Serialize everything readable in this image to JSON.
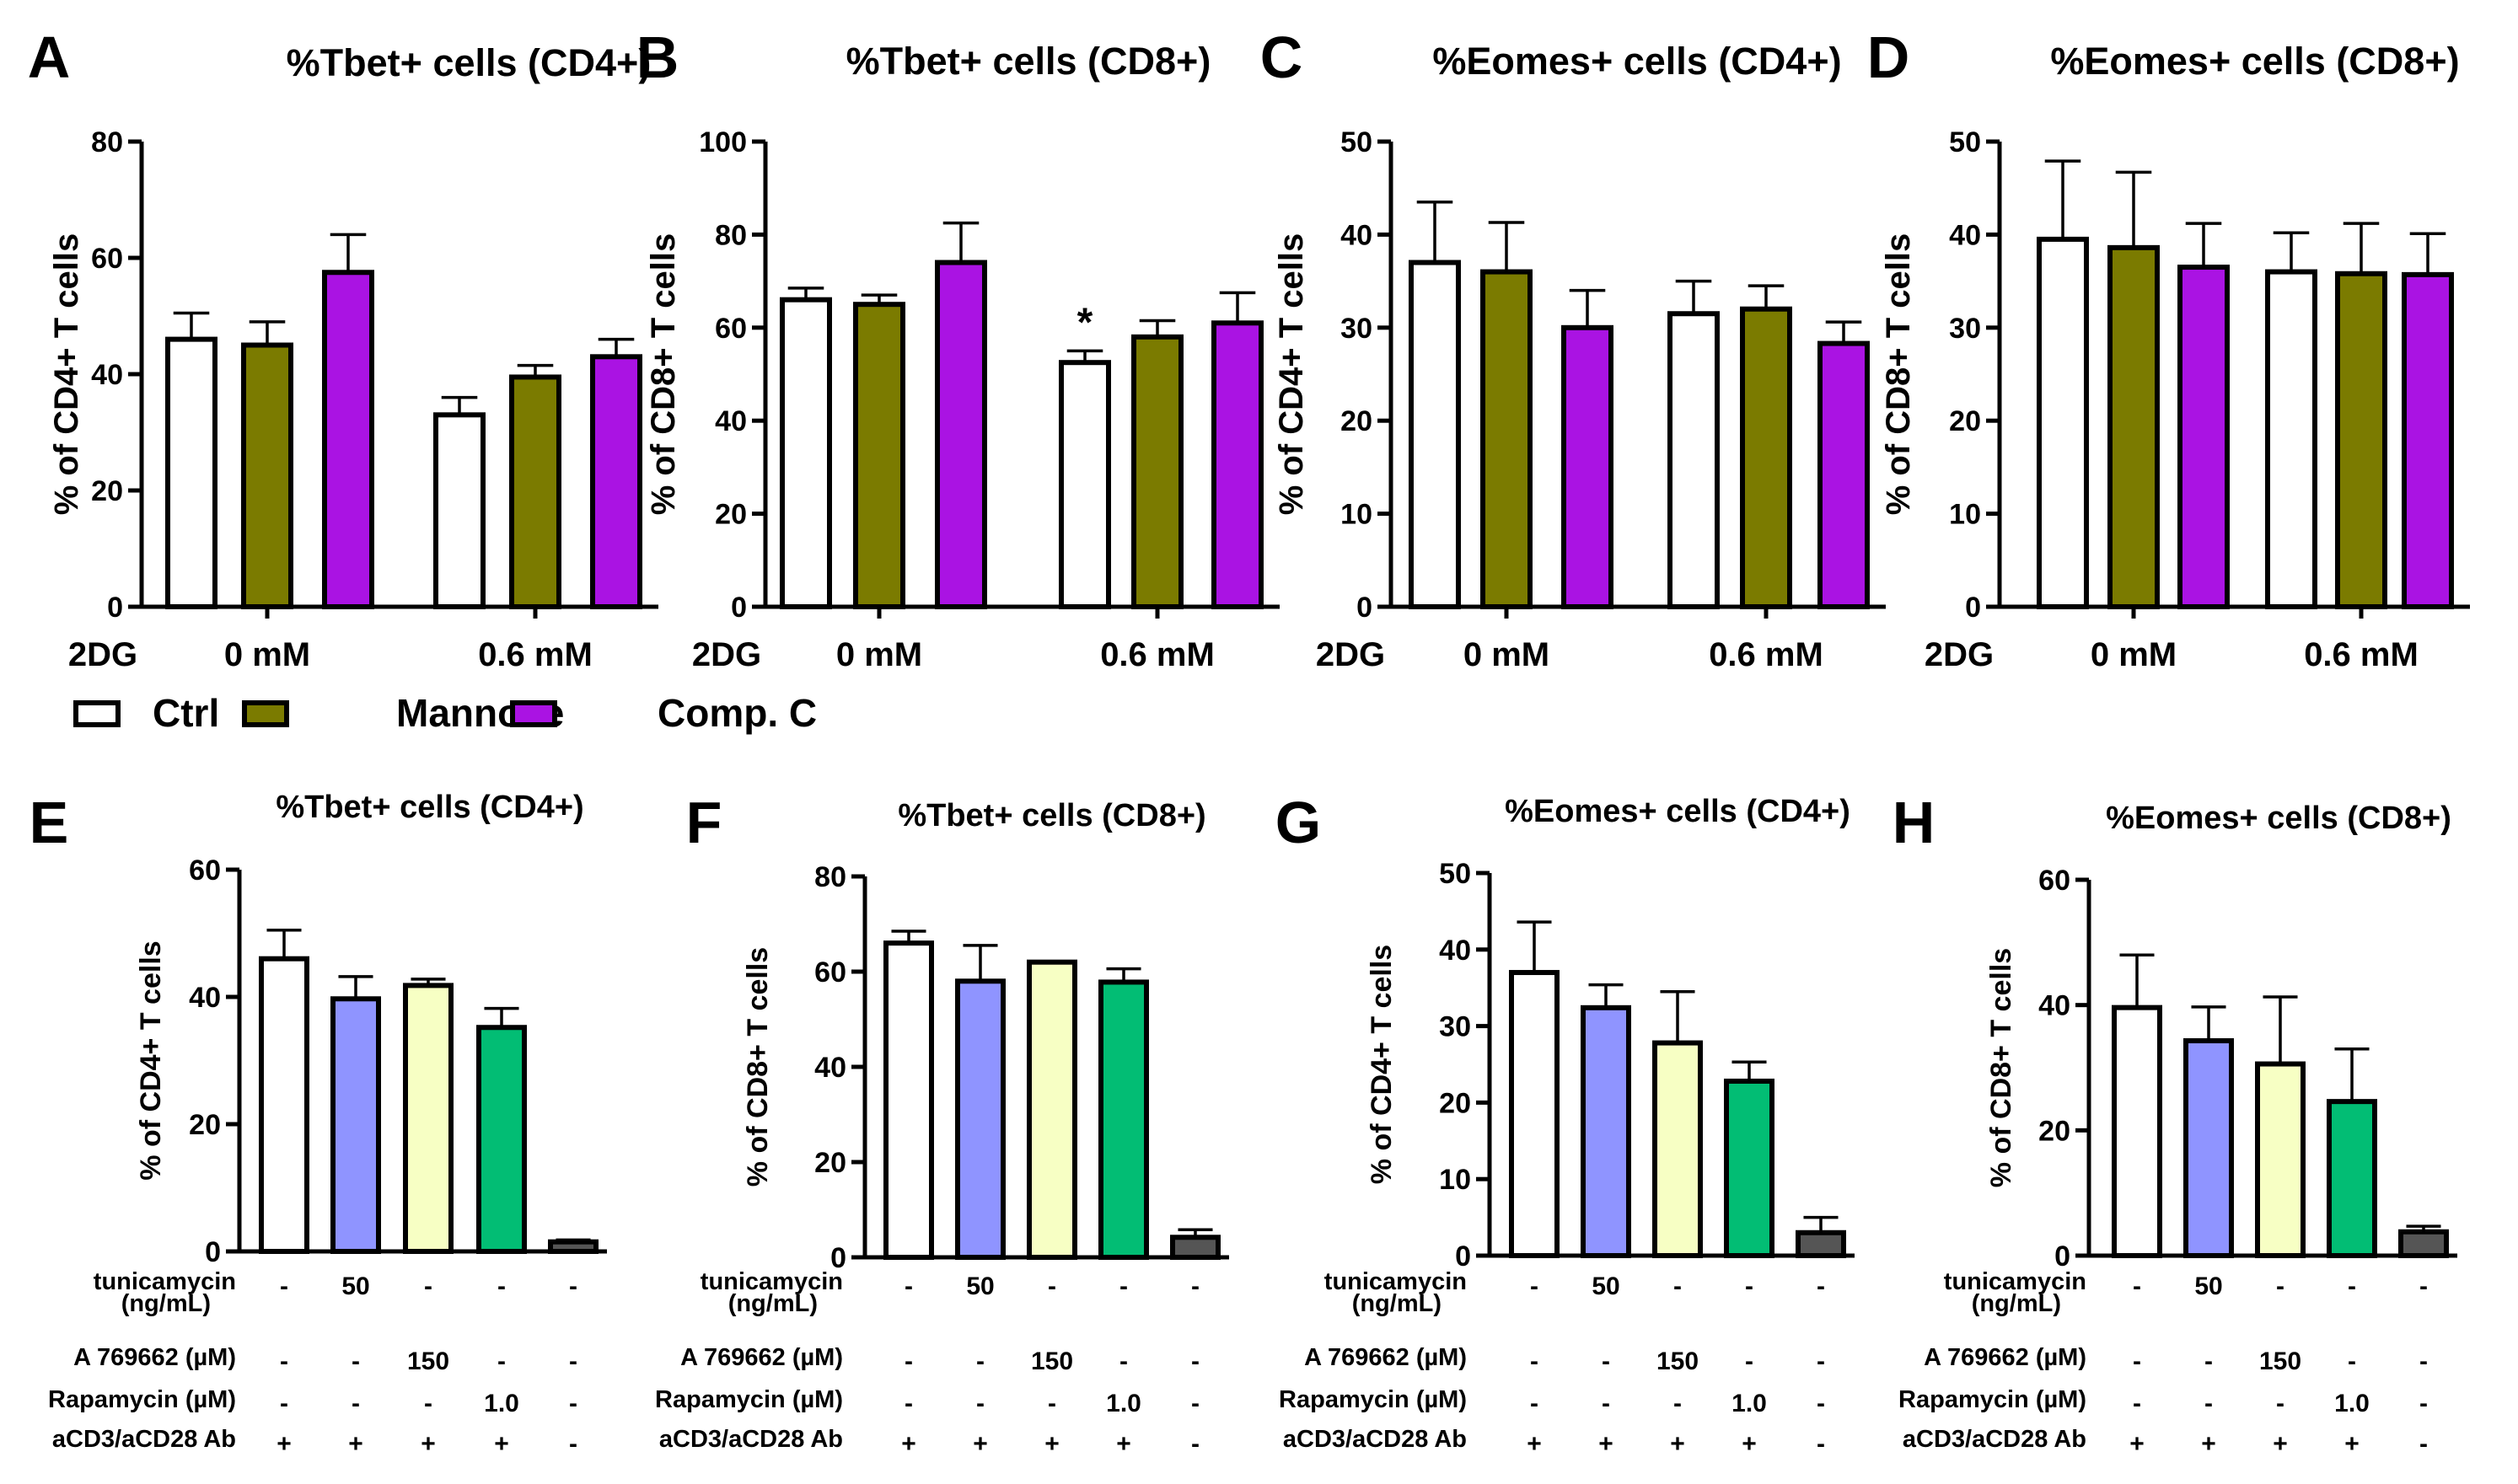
{
  "figure": {
    "legend": [
      {
        "label": "Ctrl",
        "color": "#ffffff"
      },
      {
        "label": "Mannose",
        "color": "#7b7b00"
      },
      {
        "label": "Comp. C",
        "color": "#aa13e3"
      }
    ],
    "row2_row_labels": [
      "tunicamycin",
      "(ng/mL)",
      "A 769662 (µM)",
      "Rapamycin (µM)",
      "aCD3/aCD28 Ab"
    ],
    "row2_treatment_values": [
      [
        "-",
        "50",
        "-",
        "-",
        "-"
      ],
      [
        "-",
        "-",
        "150",
        "-",
        "-"
      ],
      [
        "-",
        "-",
        "-",
        "1.0",
        "-"
      ],
      [
        "+",
        "+",
        "+",
        "+",
        "-"
      ]
    ],
    "row2_colors": [
      "#ffffff",
      "#8f94ff",
      "#f7ffc4",
      "#02bd74",
      "#555555"
    ]
  },
  "chart_data": [
    {
      "panel": "A",
      "type": "bar",
      "title": "%Tbet+ cells (CD4+)",
      "ylabel": "% of CD4+ T cells",
      "ylim": [
        0,
        80
      ],
      "yticks": [
        0,
        20,
        40,
        60,
        80
      ],
      "xprefix": "2DG",
      "categories": [
        "0 mM",
        "0.6 mM"
      ],
      "series": [
        {
          "name": "Ctrl",
          "values": [
            46,
            33
          ],
          "errors": [
            4.5,
            3
          ]
        },
        {
          "name": "Mannose",
          "values": [
            45,
            39.5
          ],
          "errors": [
            4,
            2
          ]
        },
        {
          "name": "Comp. C",
          "values": [
            57.5,
            43
          ],
          "errors": [
            6.5,
            3
          ]
        }
      ]
    },
    {
      "panel": "B",
      "type": "bar",
      "title": "%Tbet+ cells (CD8+)",
      "ylabel": "% of CD8+ T cells",
      "ylim": [
        0,
        100
      ],
      "yticks": [
        0,
        20,
        40,
        60,
        80,
        100
      ],
      "xprefix": "2DG",
      "categories": [
        "0 mM",
        "0.6 mM"
      ],
      "series": [
        {
          "name": "Ctrl",
          "values": [
            66,
            52.5
          ],
          "errors": [
            2.5,
            2.5
          ]
        },
        {
          "name": "Mannose",
          "values": [
            65,
            58
          ],
          "errors": [
            2,
            3.5
          ]
        },
        {
          "name": "Comp. C",
          "values": [
            74,
            61
          ],
          "errors": [
            8.5,
            6.5
          ]
        }
      ],
      "annotations": [
        {
          "text": "*",
          "category": "0.6 mM",
          "series": "Ctrl"
        }
      ]
    },
    {
      "panel": "C",
      "type": "bar",
      "title": "%Eomes+ cells (CD4+)",
      "ylabel": "% of CD4+ T cells",
      "ylim": [
        0,
        50
      ],
      "yticks": [
        0,
        10,
        20,
        30,
        40,
        50
      ],
      "xprefix": "2DG",
      "categories": [
        "0 mM",
        "0.6 mM"
      ],
      "series": [
        {
          "name": "Ctrl",
          "values": [
            37,
            31.5
          ],
          "errors": [
            6.5,
            3.5
          ]
        },
        {
          "name": "Mannose",
          "values": [
            36,
            32
          ],
          "errors": [
            5.3,
            2.5
          ]
        },
        {
          "name": "Comp. C",
          "values": [
            30,
            28.3
          ],
          "errors": [
            4,
            2.3
          ]
        }
      ]
    },
    {
      "panel": "D",
      "type": "bar",
      "title": "%Eomes+ cells (CD8+)",
      "ylabel": "% of CD8+ T cells",
      "ylim": [
        0,
        50
      ],
      "yticks": [
        0,
        10,
        20,
        30,
        40,
        50
      ],
      "xprefix": "2DG",
      "categories": [
        "0 mM",
        "0.6 mM"
      ],
      "series": [
        {
          "name": "Ctrl",
          "values": [
            39.5,
            36
          ],
          "errors": [
            8.4,
            4.2
          ]
        },
        {
          "name": "Mannose",
          "values": [
            38.6,
            35.8
          ],
          "errors": [
            8.1,
            5.4
          ]
        },
        {
          "name": "Comp. C",
          "values": [
            36.5,
            35.7
          ],
          "errors": [
            4.7,
            4.4
          ]
        }
      ]
    },
    {
      "panel": "E",
      "type": "bar",
      "title": "%Tbet+ cells (CD4+)",
      "ylabel": "% of CD4+ T cells",
      "ylim": [
        0,
        60
      ],
      "yticks": [
        0,
        20,
        40,
        60
      ],
      "values": [
        46,
        39.7,
        41.8,
        35.2,
        1.5
      ],
      "errors": [
        4.5,
        3.5,
        1,
        3,
        0.3
      ]
    },
    {
      "panel": "F",
      "type": "bar",
      "title": "%Tbet+ cells (CD8+)",
      "ylabel": "% of CD8+ T cells",
      "ylim": [
        0,
        80
      ],
      "yticks": [
        0,
        20,
        40,
        60,
        80
      ],
      "values": [
        66,
        58,
        62,
        57.8,
        4.2
      ],
      "errors": [
        2.5,
        7.5,
        0,
        2.8,
        1.6
      ]
    },
    {
      "panel": "G",
      "type": "bar",
      "title": "%Eomes+ cells (CD4+)",
      "ylabel": "% of CD4+ T cells",
      "ylim": [
        0,
        50
      ],
      "yticks": [
        0,
        10,
        20,
        30,
        40,
        50
      ],
      "values": [
        37,
        32.4,
        27.8,
        22.8,
        3
      ],
      "errors": [
        6.6,
        3,
        6.7,
        2.5,
        2
      ]
    },
    {
      "panel": "H",
      "type": "bar",
      "title": "%Eomes+ cells (CD8+)",
      "ylabel": "% of CD8+ T cells",
      "ylim": [
        0,
        60
      ],
      "yticks": [
        0,
        20,
        40,
        60
      ],
      "values": [
        39.6,
        34.3,
        30.6,
        24.6,
        3.8
      ],
      "errors": [
        8.4,
        5.4,
        10.7,
        8.4,
        0.9
      ]
    }
  ]
}
